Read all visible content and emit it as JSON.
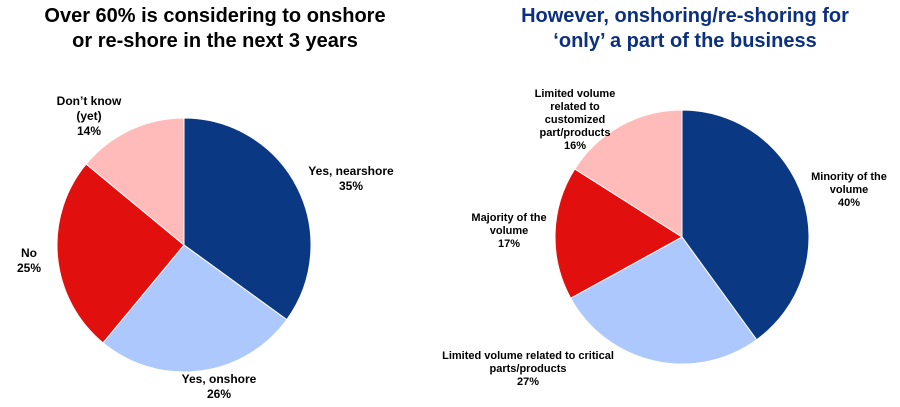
{
  "colors": {
    "dark_blue": "#0b3883",
    "light_blue": "#adc8fc",
    "red": "#e20f0f",
    "pink": "#ffbaba",
    "right_title": "#0b3080"
  },
  "chart_data": [
    {
      "type": "pie",
      "title": [
        "Over 60% is considering to onshore",
        "or re-shore in the next 3 years"
      ],
      "start": "12 o'clock, clockwise",
      "slices": [
        {
          "name": "Yes, nearshore",
          "label": [
            "Yes, nearshore"
          ],
          "value": 35,
          "value_label": "35%",
          "color": "#0b3883"
        },
        {
          "name": "Yes, onshore",
          "label": [
            "Yes, onshore"
          ],
          "value": 26,
          "value_label": "26%",
          "color": "#adc8fc"
        },
        {
          "name": "No",
          "label": [
            "No"
          ],
          "value": 25,
          "value_label": "25%",
          "color": "#e20f0f"
        },
        {
          "name": "Don't know (yet)",
          "label": [
            "Don’t know",
            "(yet)"
          ],
          "value": 14,
          "value_label": "14%",
          "color": "#ffbaba"
        }
      ]
    },
    {
      "type": "pie",
      "title": [
        "However, onshoring/re-shoring for",
        "‘only’ a part of the business"
      ],
      "start": "12 o'clock, clockwise",
      "slices": [
        {
          "name": "Minority of the volume",
          "label": [
            "Minority of the",
            "volume"
          ],
          "value": 40,
          "value_label": "40%",
          "color": "#0b3883"
        },
        {
          "name": "Limited volume related to critical parts/products",
          "label": [
            "Limited volume related to critical",
            "parts/products"
          ],
          "value": 27,
          "value_label": "27%",
          "color": "#adc8fc"
        },
        {
          "name": "Majority of the volume",
          "label": [
            "Majority of the",
            "volume"
          ],
          "value": 17,
          "value_label": "17%",
          "color": "#e20f0f"
        },
        {
          "name": "Limited volume related to customized part/products",
          "label": [
            "Limited volume",
            "related to",
            "customized",
            "part/products"
          ],
          "value": 16,
          "value_label": "16%",
          "color": "#ffbaba"
        }
      ]
    }
  ]
}
